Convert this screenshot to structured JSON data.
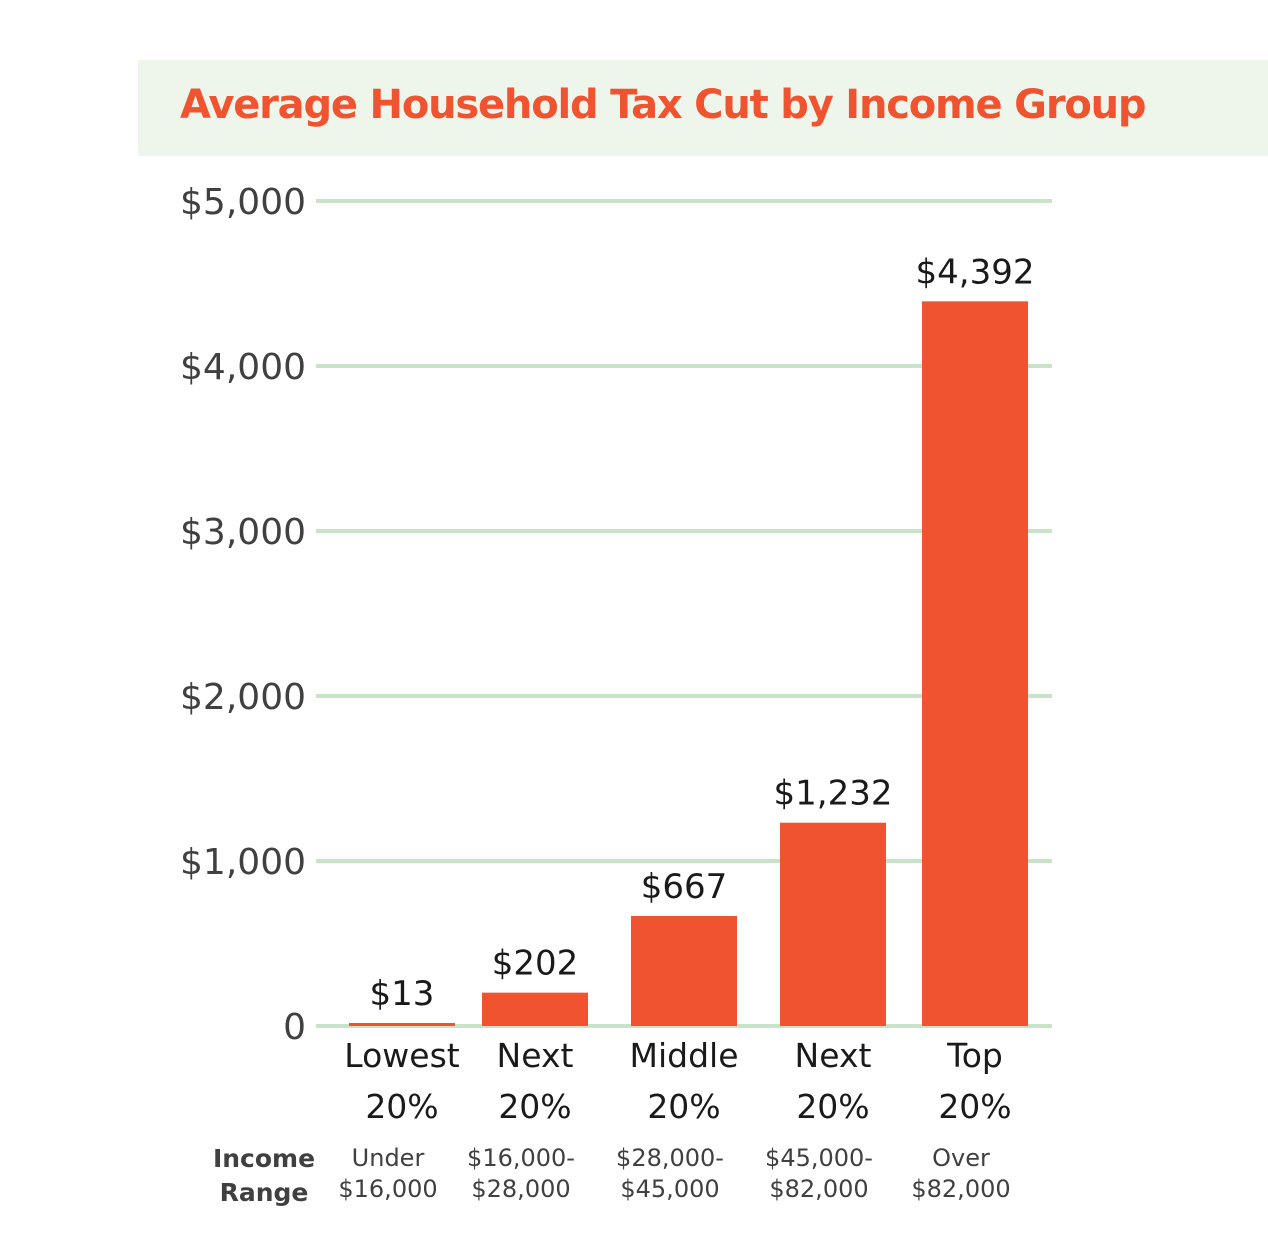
{
  "header": {
    "title": "Average Household Tax Cut by Income Group"
  },
  "colors": {
    "title_band_bg": "#eef5ea",
    "title_text": "#f0532f",
    "bar": "#f0532f",
    "gridline": "#c9e3c9",
    "axis_text": "#404040",
    "label_text": "#1a1a1a"
  },
  "income_range_heading": [
    "Income",
    "Range"
  ],
  "chart_data": {
    "type": "bar",
    "title": "Average Household Tax Cut by Income Group",
    "categories": [
      [
        "Lowest",
        "20%"
      ],
      [
        "Next",
        "20%"
      ],
      [
        "Middle",
        "20%"
      ],
      [
        "Next",
        "20%"
      ],
      [
        "Top",
        "20%"
      ]
    ],
    "income_ranges": [
      [
        "Under",
        "$16,000"
      ],
      [
        "$16,000-",
        "$28,000"
      ],
      [
        "$28,000-",
        "$45,000"
      ],
      [
        "$45,000-",
        "$82,000"
      ],
      [
        "Over",
        "$82,000"
      ]
    ],
    "values": [
      13,
      202,
      667,
      1232,
      4392
    ],
    "value_labels": [
      "$13",
      "$202",
      "$667",
      "$1,232",
      "$4,392"
    ],
    "ylim": [
      0,
      5000
    ],
    "yticks": [
      0,
      1000,
      2000,
      3000,
      4000,
      5000
    ],
    "ytick_labels": [
      "0",
      "$1,000",
      "$2,000",
      "$3,000",
      "$4,000",
      "$5,000"
    ],
    "grid": true,
    "legend": "none"
  }
}
